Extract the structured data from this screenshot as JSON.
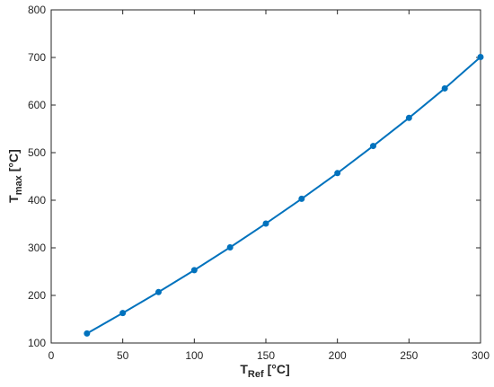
{
  "chart_data": {
    "type": "line",
    "title": "",
    "xlabel": {
      "main": "T",
      "sub": "Ref",
      "unit": "[°C]"
    },
    "ylabel": {
      "main": "T",
      "sub": "max",
      "unit": "[°C]"
    },
    "xlim": [
      0,
      300
    ],
    "ylim": [
      100,
      800
    ],
    "xticks": [
      0,
      50,
      100,
      150,
      200,
      250,
      300
    ],
    "yticks": [
      100,
      200,
      300,
      400,
      500,
      600,
      700,
      800
    ],
    "grid": false,
    "box": true,
    "series": [
      {
        "color": "#0072BD",
        "marker": "circle",
        "x": [
          25,
          50,
          75,
          100,
          125,
          150,
          175,
          200,
          225,
          250,
          275,
          300
        ],
        "y": [
          120,
          163,
          207,
          253,
          301,
          351,
          403,
          457,
          514,
          573,
          635,
          701
        ]
      }
    ]
  }
}
